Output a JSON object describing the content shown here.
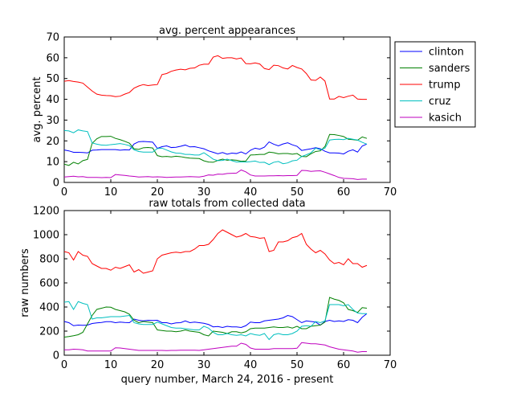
{
  "chart_data": [
    {
      "type": "line",
      "title": "avg. percent appearances",
      "xlabel": "",
      "ylabel": "avg. percent",
      "xlim": [
        0,
        70
      ],
      "ylim": [
        0,
        70
      ],
      "xticks": [
        0,
        10,
        20,
        30,
        40,
        50,
        60,
        70
      ],
      "yticks": [
        0,
        10,
        20,
        30,
        40,
        50,
        60,
        70
      ],
      "grid": false,
      "legend": "outside-right",
      "x": [
        0,
        1,
        2,
        3,
        4,
        5,
        6,
        7,
        8,
        9,
        10,
        11,
        12,
        13,
        14,
        15,
        16,
        17,
        18,
        19,
        20,
        21,
        22,
        23,
        24,
        25,
        26,
        27,
        28,
        29,
        30,
        31,
        32,
        33,
        34,
        35,
        36,
        37,
        38,
        39,
        40,
        41,
        42,
        43,
        44,
        45,
        46,
        47,
        48,
        49,
        50,
        51,
        52,
        53,
        54,
        55,
        56,
        57,
        58,
        59,
        60,
        61,
        62,
        63,
        64,
        65
      ],
      "series": [
        {
          "name": "clinton",
          "color": "#0000ff",
          "values": [
            15.6,
            15.2,
            14.5,
            14.5,
            14.4,
            14.2,
            15.5,
            15.6,
            15.8,
            15.8,
            15.8,
            15.8,
            15.5,
            15.7,
            15.6,
            18.5,
            19.6,
            19.7,
            19.6,
            19.4,
            16.4,
            17.2,
            17.6,
            16.8,
            16.9,
            17.4,
            18.0,
            17.1,
            17.2,
            16.7,
            16.2,
            15.2,
            14.5,
            13.8,
            14.4,
            13.6,
            14.1,
            13.9,
            14.7,
            13.7,
            15.5,
            16.5,
            16.0,
            17.0,
            19.5,
            18.4,
            17.6,
            18.5,
            19.1,
            18.1,
            17.4,
            15.4,
            15.8,
            16.2,
            16.7,
            16.2,
            15.0,
            14.2,
            14.2,
            14.1,
            13.7,
            15.0,
            15.7,
            14.6,
            17.5,
            18.5
          ]
        },
        {
          "name": "sanders",
          "color": "#008000",
          "values": [
            8.8,
            8.2,
            9.7,
            8.9,
            10.5,
            11.1,
            18.8,
            21.0,
            22.1,
            22.1,
            22.2,
            21.2,
            20.6,
            19.8,
            18.9,
            16.2,
            15.9,
            16.7,
            16.8,
            16.6,
            12.9,
            12.4,
            12.5,
            12.3,
            12.6,
            12.4,
            12.0,
            11.7,
            11.6,
            11.5,
            10.4,
            9.8,
            9.7,
            10.6,
            11.2,
            10.7,
            10.9,
            10.7,
            10.2,
            10.3,
            13.2,
            13.3,
            13.5,
            13.5,
            14.6,
            14.3,
            13.8,
            13.9,
            13.9,
            13.6,
            13.9,
            12.5,
            12.4,
            13.8,
            14.9,
            15.2,
            17.3,
            23.1,
            23.0,
            22.6,
            22.1,
            20.8,
            20.6,
            20.3,
            21.9,
            21.2
          ]
        },
        {
          "name": "trump",
          "color": "#ff0000",
          "values": [
            48.7,
            49.0,
            48.6,
            48.3,
            47.8,
            45.9,
            44.0,
            42.5,
            42.0,
            41.8,
            41.7,
            41.3,
            41.5,
            42.5,
            43.3,
            45.4,
            46.4,
            47.1,
            46.6,
            46.9,
            47.1,
            51.9,
            52.4,
            53.5,
            54.1,
            54.5,
            54.2,
            54.9,
            55.1,
            56.4,
            56.9,
            56.9,
            60.3,
            61.0,
            59.7,
            60.0,
            60.0,
            59.4,
            59.9,
            57.2,
            57.1,
            57.5,
            57.0,
            54.8,
            54.3,
            56.4,
            56.2,
            55.1,
            54.6,
            56.3,
            55.3,
            54.6,
            52.4,
            49.3,
            49.1,
            50.7,
            48.8,
            40.1,
            40.1,
            41.4,
            40.8,
            41.5,
            42.0,
            40.1,
            40.0,
            40.0
          ]
        },
        {
          "name": "cruz",
          "color": "#00bfbf",
          "values": [
            25.0,
            24.8,
            23.9,
            25.3,
            24.8,
            24.5,
            19.0,
            18.4,
            18.0,
            17.9,
            18.2,
            18.4,
            18.7,
            18.3,
            17.7,
            15.7,
            14.9,
            14.6,
            14.6,
            14.6,
            16.3,
            16.5,
            15.6,
            14.7,
            14.1,
            14.0,
            13.5,
            13.5,
            13.2,
            13.2,
            14.3,
            12.8,
            11.2,
            10.5,
            10.6,
            11.2,
            10.5,
            9.8,
            9.9,
            9.8,
            10.0,
            10.3,
            9.6,
            9.7,
            8.6,
            9.7,
            10.1,
            9.0,
            9.4,
            10.4,
            10.7,
            12.5,
            13.3,
            14.3,
            16.5,
            15.7,
            16.5,
            20.4,
            20.7,
            20.8,
            20.6,
            21.2,
            20.8,
            20.4,
            19.3,
            18.4
          ]
        },
        {
          "name": "kasich",
          "color": "#bf00bf",
          "values": [
            2.6,
            2.8,
            3.0,
            2.7,
            2.8,
            2.4,
            2.4,
            2.4,
            2.3,
            2.4,
            2.3,
            3.8,
            3.6,
            3.4,
            3.1,
            2.9,
            2.6,
            2.7,
            2.8,
            2.6,
            2.7,
            2.6,
            2.4,
            2.5,
            2.6,
            2.6,
            2.7,
            2.8,
            2.7,
            2.6,
            3.0,
            3.6,
            3.5,
            4.0,
            3.9,
            4.3,
            4.4,
            4.5,
            6.0,
            5.1,
            3.6,
            3.1,
            3.1,
            3.1,
            3.2,
            3.2,
            3.3,
            3.2,
            3.3,
            3.3,
            3.4,
            5.8,
            5.7,
            5.3,
            5.5,
            5.6,
            4.9,
            4.1,
            3.3,
            2.4,
            2.0,
            1.9,
            1.8,
            1.4,
            1.6,
            1.6
          ]
        }
      ]
    },
    {
      "type": "line",
      "title": "raw totals from collected data",
      "xlabel": "query number, March 24, 2016 - present",
      "ylabel": "raw numbers",
      "xlim": [
        0,
        70
      ],
      "ylim": [
        0,
        1200
      ],
      "xticks": [
        0,
        10,
        20,
        30,
        40,
        50,
        60,
        70
      ],
      "yticks": [
        0,
        200,
        400,
        600,
        800,
        1000,
        1200
      ],
      "grid": false,
      "x": [
        0,
        1,
        2,
        3,
        4,
        5,
        6,
        7,
        8,
        9,
        10,
        11,
        12,
        13,
        14,
        15,
        16,
        17,
        18,
        19,
        20,
        21,
        22,
        23,
        24,
        25,
        26,
        27,
        28,
        29,
        30,
        31,
        32,
        33,
        34,
        35,
        36,
        37,
        38,
        39,
        40,
        41,
        42,
        43,
        44,
        45,
        46,
        47,
        48,
        49,
        50,
        51,
        52,
        53,
        54,
        55,
        56,
        57,
        58,
        59,
        60,
        61,
        62,
        63,
        64,
        65
      ],
      "series": [
        {
          "name": "clinton",
          "color": "#0000ff",
          "values": [
            280,
            270,
            245,
            250,
            248,
            250,
            263,
            268,
            272,
            278,
            278,
            270,
            275,
            272,
            270,
            300,
            290,
            285,
            290,
            288,
            290,
            270,
            270,
            260,
            268,
            270,
            285,
            270,
            275,
            270,
            265,
            255,
            235,
            238,
            230,
            240,
            235,
            235,
            230,
            245,
            275,
            270,
            270,
            285,
            290,
            295,
            300,
            310,
            330,
            320,
            295,
            270,
            285,
            280,
            275,
            250,
            280,
            290,
            280,
            285,
            280,
            295,
            290,
            270,
            315,
            345
          ]
        },
        {
          "name": "sanders",
          "color": "#008000",
          "values": [
            150,
            155,
            162,
            170,
            190,
            260,
            330,
            380,
            390,
            400,
            398,
            380,
            370,
            360,
            340,
            290,
            270,
            280,
            275,
            270,
            210,
            205,
            200,
            200,
            195,
            200,
            210,
            200,
            195,
            190,
            170,
            160,
            200,
            195,
            190,
            180,
            195,
            195,
            185,
            195,
            220,
            225,
            225,
            225,
            230,
            235,
            230,
            230,
            235,
            225,
            240,
            220,
            220,
            240,
            245,
            250,
            275,
            480,
            465,
            455,
            435,
            380,
            370,
            355,
            395,
            390
          ]
        },
        {
          "name": "trump",
          "color": "#ff0000",
          "values": [
            860,
            850,
            790,
            860,
            830,
            820,
            760,
            740,
            720,
            720,
            705,
            730,
            720,
            735,
            750,
            690,
            710,
            680,
            690,
            700,
            800,
            830,
            840,
            850,
            855,
            850,
            860,
            860,
            880,
            910,
            910,
            920,
            960,
            1010,
            1040,
            1020,
            1000,
            980,
            990,
            1010,
            985,
            980,
            970,
            975,
            860,
            870,
            940,
            940,
            950,
            975,
            985,
            1010,
            920,
            880,
            850,
            870,
            840,
            790,
            760,
            770,
            750,
            800,
            760,
            760,
            730,
            745
          ]
        },
        {
          "name": "cruz",
          "color": "#00bfbf",
          "values": [
            440,
            445,
            380,
            445,
            430,
            420,
            300,
            310,
            310,
            315,
            320,
            320,
            320,
            325,
            330,
            270,
            260,
            255,
            255,
            255,
            275,
            260,
            245,
            230,
            225,
            225,
            220,
            215,
            210,
            210,
            240,
            225,
            190,
            170,
            170,
            180,
            170,
            165,
            170,
            160,
            180,
            170,
            165,
            180,
            130,
            170,
            180,
            170,
            170,
            180,
            200,
            240,
            245,
            240,
            280,
            270,
            285,
            420,
            420,
            420,
            410,
            420,
            380,
            350,
            345,
            345
          ]
        },
        {
          "name": "kasich",
          "color": "#bf00bf",
          "values": [
            45,
            45,
            50,
            48,
            45,
            35,
            35,
            35,
            35,
            35,
            35,
            62,
            60,
            55,
            50,
            45,
            40,
            40,
            40,
            40,
            40,
            40,
            38,
            40,
            40,
            42,
            42,
            42,
            42,
            40,
            45,
            50,
            55,
            60,
            65,
            70,
            75,
            75,
            100,
            90,
            60,
            50,
            50,
            50,
            50,
            55,
            55,
            55,
            55,
            55,
            58,
            105,
            100,
            95,
            95,
            90,
            85,
            70,
            60,
            50,
            45,
            40,
            35,
            25,
            30,
            30
          ]
        }
      ]
    }
  ]
}
